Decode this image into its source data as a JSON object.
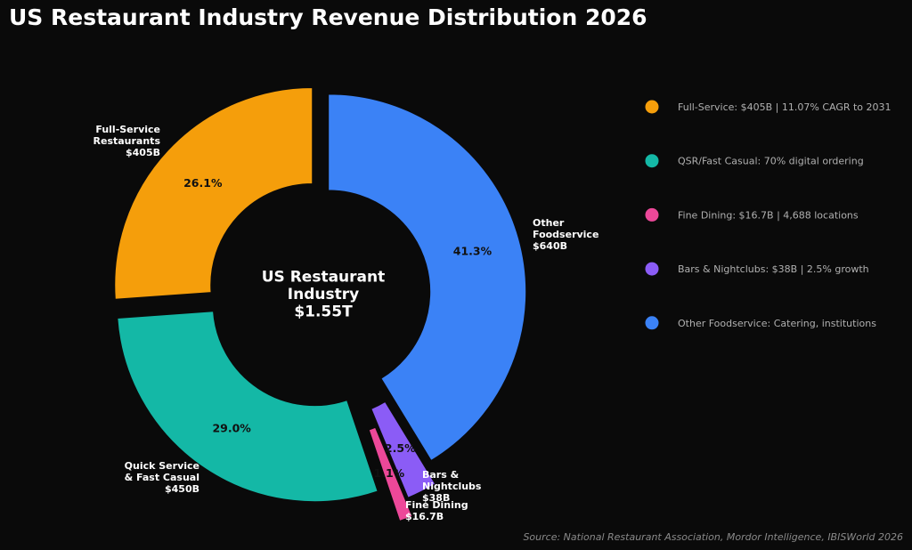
{
  "chart_data": {
    "type": "pie",
    "title": "US Restaurant Industry Revenue Distribution 2026",
    "center_label": [
      "US Restaurant",
      "Industry",
      "$1.55T"
    ],
    "slices": [
      {
        "label": "Other Foodservice $640B",
        "label_lines": [
          "Other",
          "Foodservice",
          "$640B"
        ],
        "value": 640,
        "percent_label": "41.3%",
        "color": "#3b82f6"
      },
      {
        "label": "Bars & Nightclubs $38B",
        "label_lines": [
          "Bars &",
          "Nightclubs",
          "$38B"
        ],
        "value": 38,
        "percent_label": "2.5%",
        "color": "#8b5cf6"
      },
      {
        "label": "Fine Dining $16.7B",
        "label_lines": [
          "Fine Dining",
          "$16.7B"
        ],
        "value": 16.7,
        "percent_label": "1.1%",
        "color": "#ec4899"
      },
      {
        "label": "Quick Service & Fast Casual $450B",
        "label_lines": [
          "Quick Service",
          "& Fast Casual",
          "$450B"
        ],
        "value": 450,
        "percent_label": "29.0%",
        "color": "#14b8a6"
      },
      {
        "label": "Full-Service Restaurants $405B",
        "label_lines": [
          "Full-Service",
          "Restaurants",
          "$405B"
        ],
        "value": 405,
        "percent_label": "26.1%",
        "color": "#f59e0b"
      }
    ],
    "legend": [
      {
        "text": "Full-Service: $405B | 11.07% CAGR to 2031",
        "color": "#f59e0b"
      },
      {
        "text": "QSR/Fast Casual: 70% digital ordering",
        "color": "#14b8a6"
      },
      {
        "text": "Fine Dining: $16.7B | 4,688 locations",
        "color": "#ec4899"
      },
      {
        "text": "Bars & Nightclubs: $38B | 2.5% growth",
        "color": "#8b5cf6"
      },
      {
        "text": "Other Foodservice: Catering, institutions",
        "color": "#3b82f6"
      }
    ],
    "legend_position": "right",
    "source": "Source: National Restaurant Association, Mordor Intelligence, IBISWorld 2026"
  }
}
